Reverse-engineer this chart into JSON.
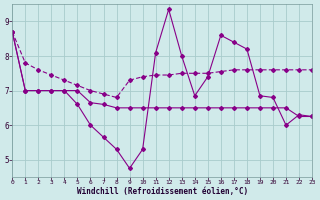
{
  "background_color": "#d0eaea",
  "grid_color": "#a8cccc",
  "line_color": "#880088",
  "xlabel": "Windchill (Refroidissement éolien,°C)",
  "xlim": [
    0,
    23
  ],
  "ylim": [
    4.5,
    9.5
  ],
  "yticks": [
    5,
    6,
    7,
    8,
    9
  ],
  "xticks": [
    0,
    1,
    2,
    3,
    4,
    5,
    6,
    7,
    8,
    9,
    10,
    11,
    12,
    13,
    14,
    15,
    16,
    17,
    18,
    19,
    20,
    21,
    22,
    23
  ],
  "line1_x": [
    0,
    1,
    2,
    3,
    4,
    5,
    6,
    7,
    8,
    9,
    10,
    11,
    12,
    13,
    14,
    15,
    16,
    17,
    18,
    19,
    20,
    21,
    22,
    23
  ],
  "line1_y": [
    8.7,
    7.8,
    7.6,
    7.45,
    7.3,
    7.15,
    7.0,
    6.9,
    6.8,
    7.3,
    7.4,
    7.45,
    7.45,
    7.5,
    7.5,
    7.5,
    7.55,
    7.6,
    7.6,
    7.6,
    7.6,
    7.6,
    7.6,
    7.6
  ],
  "line2_x": [
    0,
    1,
    2,
    3,
    4,
    5,
    6,
    7,
    8,
    9,
    10,
    11,
    12,
    13,
    14,
    15,
    16,
    17,
    18,
    19,
    20,
    21,
    22,
    23
  ],
  "line2_y": [
    8.7,
    7.0,
    7.0,
    7.0,
    7.0,
    6.6,
    6.0,
    5.65,
    5.3,
    4.75,
    5.3,
    8.1,
    9.35,
    8.0,
    6.85,
    7.4,
    8.6,
    8.4,
    8.2,
    6.85,
    6.8,
    6.0,
    6.3,
    6.25
  ],
  "line3_x": [
    0,
    1,
    2,
    3,
    4,
    5,
    6,
    7,
    8,
    9,
    10,
    11,
    12,
    13,
    14,
    15,
    16,
    17,
    18,
    19,
    20,
    21,
    22,
    23
  ],
  "line3_y": [
    8.7,
    7.0,
    7.0,
    7.0,
    7.0,
    7.0,
    6.65,
    6.6,
    6.5,
    6.5,
    6.5,
    6.5,
    6.5,
    6.5,
    6.5,
    6.5,
    6.5,
    6.5,
    6.5,
    6.5,
    6.5,
    6.5,
    6.25,
    6.25
  ]
}
